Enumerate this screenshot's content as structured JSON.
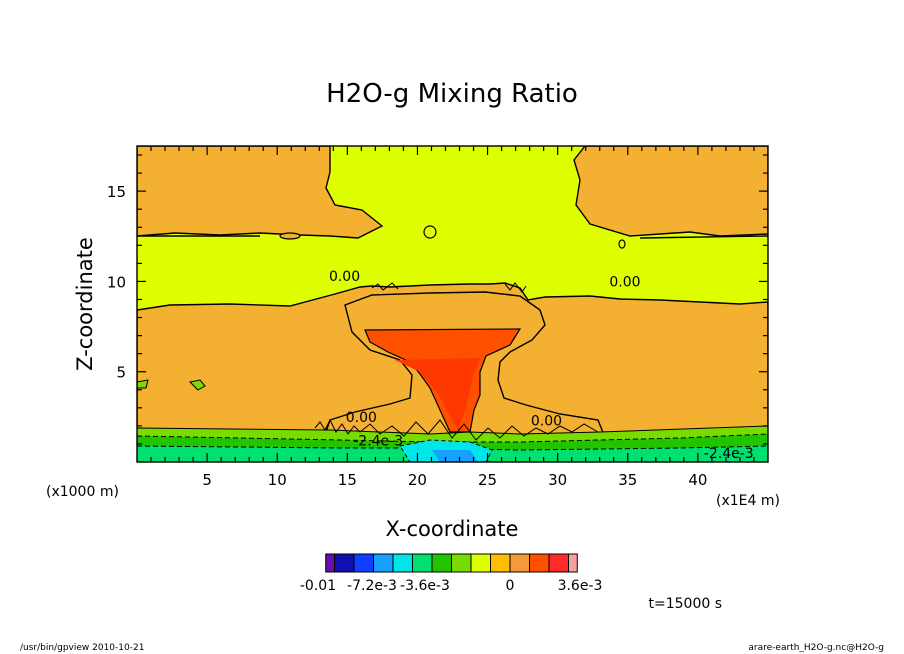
{
  "chart_data": {
    "type": "heatmap",
    "title": "H2O-g Mixing Ratio",
    "xlabel": "X-coordinate",
    "ylabel": "Z-coordinate",
    "x_unit_label": "(x1000 m)",
    "x_scale_label": "(x1E4 m)",
    "xlim": [
      0,
      45
    ],
    "ylim": [
      0,
      17.5
    ],
    "xticks": [
      5,
      10,
      15,
      20,
      25,
      30,
      35,
      40
    ],
    "xtick_labels": [
      "5",
      "10",
      "15",
      "20",
      "25",
      "30",
      "35",
      "40"
    ],
    "yticks": [
      5,
      10,
      15
    ],
    "ytick_labels": [
      "5",
      "10",
      "15"
    ],
    "contour_labels": [
      {
        "text": "0.00",
        "x": 14.8,
        "y": 10.3
      },
      {
        "text": "0.00",
        "x": 34.8,
        "y": 10.0
      },
      {
        "text": "0.00",
        "x": 16.0,
        "y": 2.5
      },
      {
        "text": "0.00",
        "x": 29.2,
        "y": 2.3
      },
      {
        "text": "-2.4e-3",
        "x": 17.2,
        "y": 1.2
      },
      {
        "text": "-2.4e-3",
        "x": 42.2,
        "y": 0.5
      }
    ],
    "colorbar": {
      "levels": [
        -0.01,
        -0.0072,
        -0.0036,
        0,
        0.0036
      ],
      "tick_labels": [
        "-0.01",
        "-7.2e-3",
        "-3.6e-3",
        "0",
        "3.6e-3"
      ],
      "colors": [
        "#6a0dad",
        "#1010b0",
        "#1040ff",
        "#18a0ff",
        "#00e5e5",
        "#00e070",
        "#22c400",
        "#78dc00",
        "#ddff00",
        "#ffbc00",
        "#f49a3c",
        "#ff5000",
        "#ff2a2a",
        "#f5a0a0"
      ]
    },
    "time_label": "t=15000 s",
    "colors": {
      "background": "#ddff00",
      "orange": "#f4b030",
      "deep_orange": "#ff5000",
      "green": "#22c400",
      "lightgreen": "#78dc00",
      "cyan": "#00e5e5",
      "blue": "#18a0ff"
    }
  },
  "footer": {
    "left": "/usr/bin/gpview   2010-10-21",
    "right": "arare-earth_H2O-g.nc@H2O-g"
  }
}
